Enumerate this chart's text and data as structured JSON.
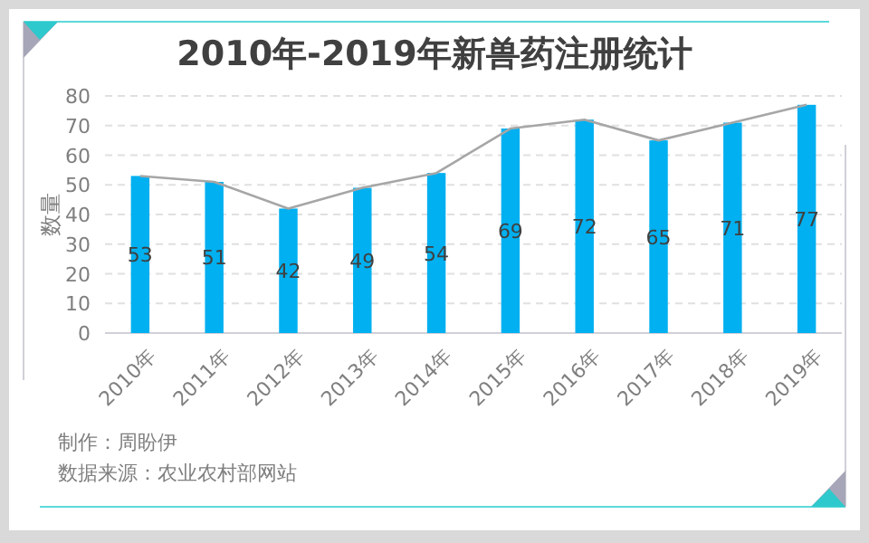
{
  "chart_data": {
    "type": "bar",
    "title": "2010年-2019年新兽药注册统计",
    "ylabel": "数量",
    "categories": [
      "2010年",
      "2011年",
      "2012年",
      "2013年",
      "2014年",
      "2015年",
      "2016年",
      "2017年",
      "2018年",
      "2019年"
    ],
    "series": [
      {
        "color": "#00b0f0",
        "values": [
          53,
          51,
          42,
          49,
          54,
          69,
          72,
          65,
          71,
          77
        ],
        "value_labels": [
          "53",
          "51",
          "42",
          "49",
          "54",
          "69",
          "72",
          "65",
          "71",
          "77"
        ]
      },
      {
        "type": "line",
        "color": "#a6a6a6",
        "values": [
          53,
          51,
          42,
          49,
          54,
          69,
          72,
          65,
          71,
          77
        ]
      }
    ],
    "ylim": [
      0,
      80
    ],
    "yticks": [
      0,
      10,
      20,
      30,
      40,
      50,
      60,
      70,
      80
    ],
    "grid": "y",
    "annotations": [
      "制作：周盼伊",
      "数据来源：农业农村部网站"
    ]
  }
}
